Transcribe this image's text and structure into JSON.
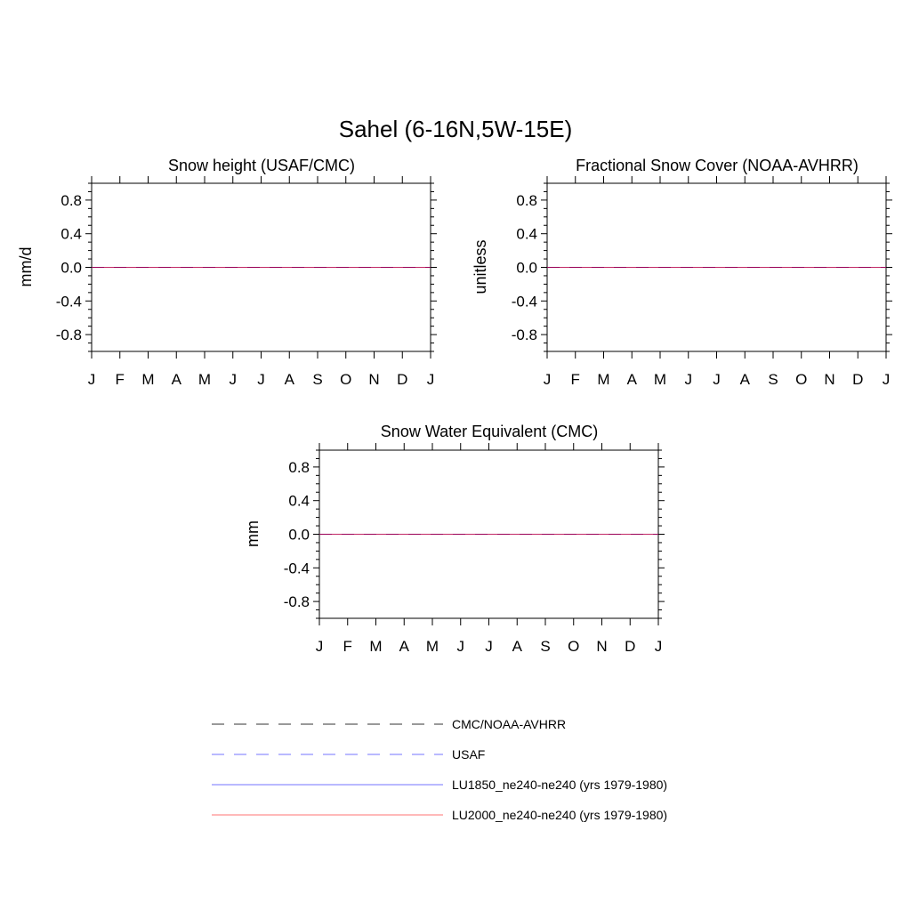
{
  "figure_title": "Sahel (6-16N,5W-15E)",
  "chart_data": [
    {
      "type": "line",
      "title": "Snow height (USAF/CMC)",
      "ylabel": "mm/d",
      "xlabel": "",
      "ylim": [
        -1,
        1
      ],
      "yticks": [
        "0.8",
        "0.4",
        "0.0",
        "-0.4",
        "-0.8"
      ],
      "categories": [
        "J",
        "F",
        "M",
        "A",
        "M",
        "J",
        "J",
        "A",
        "S",
        "O",
        "N",
        "D",
        "J"
      ],
      "series": [
        {
          "name": "CMC/NOAA-AVHRR",
          "values": [
            0,
            0,
            0,
            0,
            0,
            0,
            0,
            0,
            0,
            0,
            0,
            0,
            0
          ]
        },
        {
          "name": "USAF",
          "values": [
            0,
            0,
            0,
            0,
            0,
            0,
            0,
            0,
            0,
            0,
            0,
            0,
            0
          ]
        },
        {
          "name": "LU1850_ne240-ne240 (yrs 1979-1980)",
          "values": [
            0,
            0,
            0,
            0,
            0,
            0,
            0,
            0,
            0,
            0,
            0,
            0,
            0
          ]
        },
        {
          "name": "LU2000_ne240-ne240 (yrs 1979-1980)",
          "values": [
            0,
            0,
            0,
            0,
            0,
            0,
            0,
            0,
            0,
            0,
            0,
            0,
            0
          ]
        }
      ]
    },
    {
      "type": "line",
      "title": "Fractional Snow Cover (NOAA-AVHRR)",
      "ylabel": "unitless",
      "xlabel": "",
      "ylim": [
        -1,
        1
      ],
      "yticks": [
        "0.8",
        "0.4",
        "0.0",
        "-0.4",
        "-0.8"
      ],
      "categories": [
        "J",
        "F",
        "M",
        "A",
        "M",
        "J",
        "J",
        "A",
        "S",
        "O",
        "N",
        "D",
        "J"
      ],
      "series": [
        {
          "name": "CMC/NOAA-AVHRR",
          "values": [
            0,
            0,
            0,
            0,
            0,
            0,
            0,
            0,
            0,
            0,
            0,
            0,
            0
          ]
        },
        {
          "name": "USAF",
          "values": [
            0,
            0,
            0,
            0,
            0,
            0,
            0,
            0,
            0,
            0,
            0,
            0,
            0
          ]
        },
        {
          "name": "LU1850_ne240-ne240 (yrs 1979-1980)",
          "values": [
            0,
            0,
            0,
            0,
            0,
            0,
            0,
            0,
            0,
            0,
            0,
            0,
            0
          ]
        },
        {
          "name": "LU2000_ne240-ne240 (yrs 1979-1980)",
          "values": [
            0,
            0,
            0,
            0,
            0,
            0,
            0,
            0,
            0,
            0,
            0,
            0,
            0
          ]
        }
      ]
    },
    {
      "type": "line",
      "title": "Snow Water Equivalent (CMC)",
      "ylabel": "mm",
      "xlabel": "",
      "ylim": [
        -1,
        1
      ],
      "yticks": [
        "0.8",
        "0.4",
        "0.0",
        "-0.4",
        "-0.8"
      ],
      "categories": [
        "J",
        "F",
        "M",
        "A",
        "M",
        "J",
        "J",
        "A",
        "S",
        "O",
        "N",
        "D",
        "J"
      ],
      "series": [
        {
          "name": "CMC/NOAA-AVHRR",
          "values": [
            0,
            0,
            0,
            0,
            0,
            0,
            0,
            0,
            0,
            0,
            0,
            0,
            0
          ]
        },
        {
          "name": "USAF",
          "values": [
            0,
            0,
            0,
            0,
            0,
            0,
            0,
            0,
            0,
            0,
            0,
            0,
            0
          ]
        },
        {
          "name": "LU1850_ne240-ne240 (yrs 1979-1980)",
          "values": [
            0,
            0,
            0,
            0,
            0,
            0,
            0,
            0,
            0,
            0,
            0,
            0,
            0
          ]
        },
        {
          "name": "LU2000_ne240-ne240 (yrs 1979-1980)",
          "values": [
            0,
            0,
            0,
            0,
            0,
            0,
            0,
            0,
            0,
            0,
            0,
            0,
            0
          ]
        }
      ]
    }
  ],
  "legend": {
    "items": [
      {
        "label": "CMC/NOAA-AVHRR",
        "color": "#000000",
        "style": "dashed"
      },
      {
        "label": "USAF",
        "color": "#0000ff",
        "style": "dashed"
      },
      {
        "label": "LU1850_ne240-ne240 (yrs 1979-1980)",
        "color": "#0000ff",
        "style": "solid"
      },
      {
        "label": "LU2000_ne240-ne240 (yrs 1979-1980)",
        "color": "#ff0000",
        "style": "solid"
      }
    ]
  }
}
